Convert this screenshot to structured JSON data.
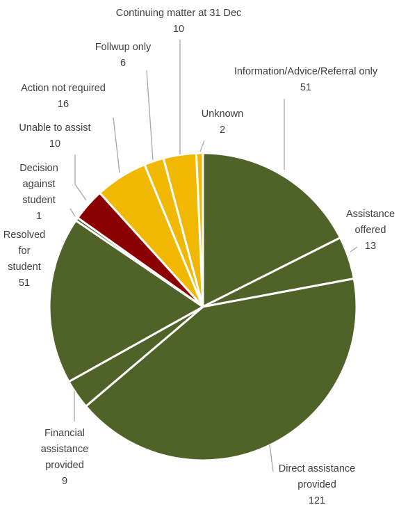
{
  "chart_data": {
    "type": "pie",
    "title": "",
    "start": "12 o'clock",
    "direction": "clockwise",
    "legend": "none",
    "colors": {
      "green": "#4f6228",
      "red": "#8b0000",
      "gold": "#f0b800"
    },
    "slices": [
      {
        "label": [
          "Information/Advice/Referral only"
        ],
        "value": 51,
        "color": "green"
      },
      {
        "label": [
          "Assistance",
          "offered"
        ],
        "value": 13,
        "color": "green"
      },
      {
        "label": [
          "Direct assistance",
          "provided"
        ],
        "value": 121,
        "color": "green"
      },
      {
        "label": [
          "Financial",
          "assistance",
          "provided"
        ],
        "value": 9,
        "color": "green"
      },
      {
        "label": [
          "Resolved",
          "for",
          "student"
        ],
        "value": 51,
        "color": "green"
      },
      {
        "label": [
          "Decision",
          "against",
          "student"
        ],
        "value": 1,
        "color": "green"
      },
      {
        "label": [
          "Unable to assist"
        ],
        "value": 10,
        "color": "red"
      },
      {
        "label": [
          "Action not required"
        ],
        "value": 16,
        "color": "gold"
      },
      {
        "label": [
          "Follwup only"
        ],
        "value": 6,
        "color": "gold"
      },
      {
        "label": [
          "Continuing matter at 31 Dec"
        ],
        "value": 10,
        "color": "gold"
      },
      {
        "label": [
          "Unknown"
        ],
        "value": 2,
        "color": "gold"
      }
    ]
  }
}
